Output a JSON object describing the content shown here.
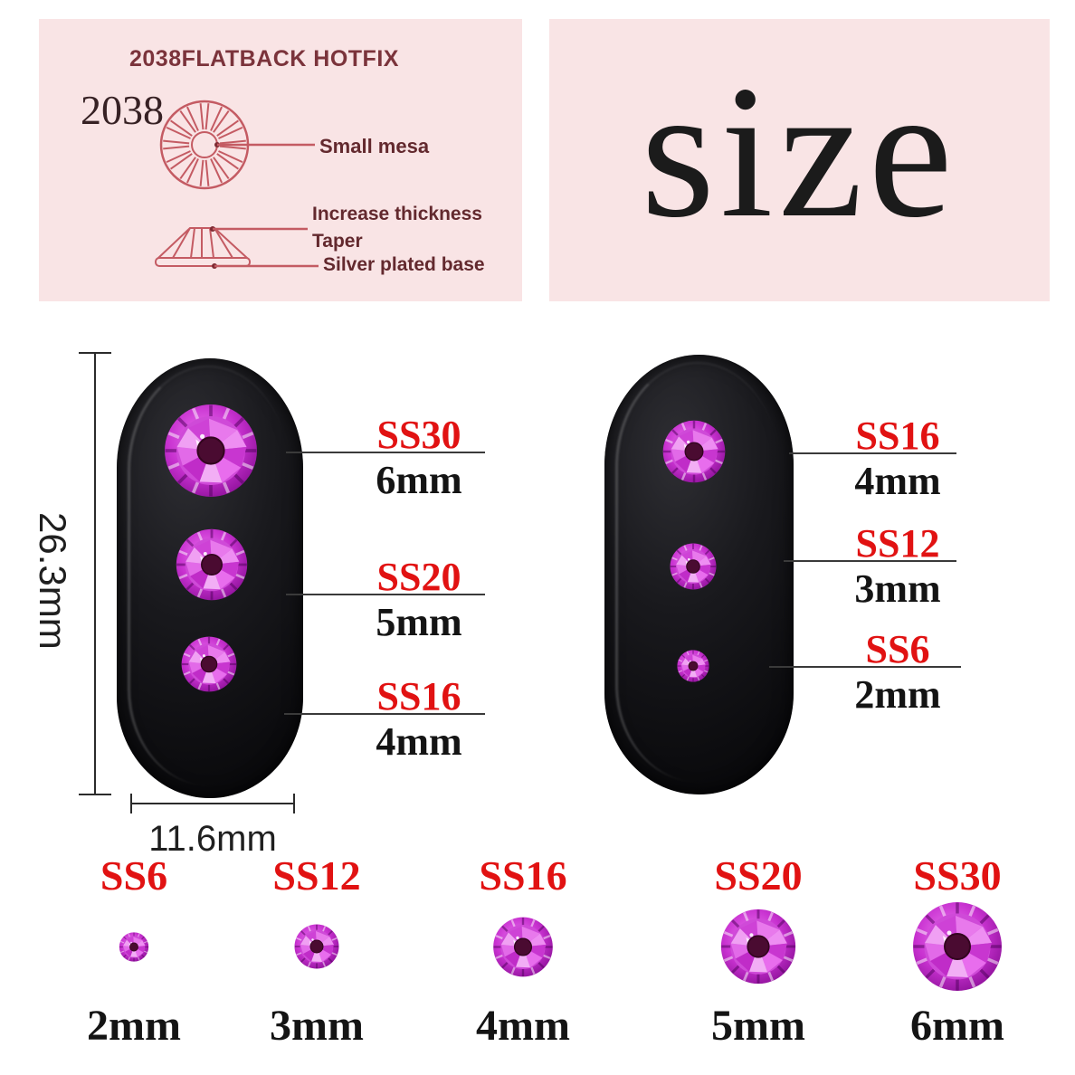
{
  "spec_panel": {
    "title": "2038FLATBACK HOTFIX",
    "model": "2038",
    "callouts": {
      "mesa": "Small mesa",
      "thickness": "Increase thickness",
      "taper": "Taper",
      "base": "Silver plated base"
    }
  },
  "size_panel": {
    "title": "size"
  },
  "left_nail": {
    "height": "26.3mm",
    "width": "11.6mm",
    "callouts": [
      {
        "code": "SS30",
        "size": "6mm"
      },
      {
        "code": "SS20",
        "size": "5mm"
      },
      {
        "code": "SS16",
        "size": "4mm"
      }
    ]
  },
  "right_nail": {
    "callouts": [
      {
        "code": "SS16",
        "size": "4mm"
      },
      {
        "code": "SS12",
        "size": "3mm"
      },
      {
        "code": "SS6",
        "size": "2mm"
      }
    ]
  },
  "size_row": [
    {
      "code": "SS6",
      "size": "2mm"
    },
    {
      "code": "SS12",
      "size": "3mm"
    },
    {
      "code": "SS16",
      "size": "4mm"
    },
    {
      "code": "SS20",
      "size": "5mm"
    },
    {
      "code": "SS30",
      "size": "6mm"
    }
  ],
  "colors": {
    "panel_pink": "#f9e4e5",
    "accent_red": "#e11212",
    "diagram_stroke": "#c45b63",
    "gem_magenta": "#c832d0",
    "ink": "#141414"
  }
}
